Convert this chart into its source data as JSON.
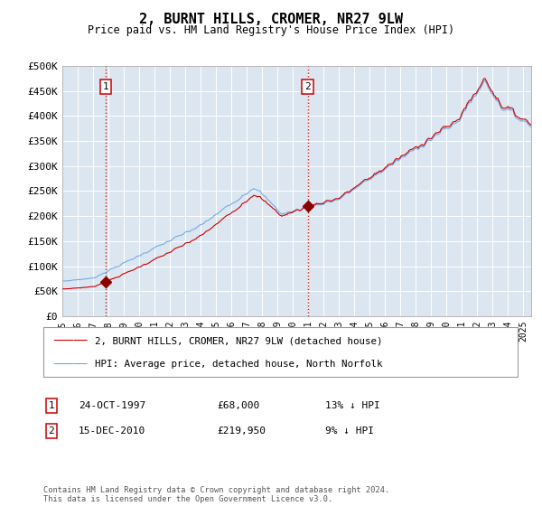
{
  "title": "2, BURNT HILLS, CROMER, NR27 9LW",
  "subtitle": "Price paid vs. HM Land Registry's House Price Index (HPI)",
  "bg_color": "#dce6f1",
  "hpi_color": "#6fa8dc",
  "price_color": "#cc0000",
  "marker_color": "#8b0000",
  "vline_color": "#cc0000",
  "grid_color": "#ffffff",
  "purchase1_date_x": 1997.82,
  "purchase1_price": 68000,
  "purchase2_date_x": 2010.96,
  "purchase2_price": 219950,
  "ylim_min": 0,
  "ylim_max": 500000,
  "xlim_min": 1995.0,
  "xlim_max": 2025.5,
  "yticks": [
    0,
    50000,
    100000,
    150000,
    200000,
    250000,
    300000,
    350000,
    400000,
    450000,
    500000
  ],
  "ytick_labels": [
    "£0",
    "£50K",
    "£100K",
    "£150K",
    "£200K",
    "£250K",
    "£300K",
    "£350K",
    "£400K",
    "£450K",
    "£500K"
  ],
  "xtick_years": [
    1995,
    1996,
    1997,
    1998,
    1999,
    2000,
    2001,
    2002,
    2003,
    2004,
    2005,
    2006,
    2007,
    2008,
    2009,
    2010,
    2011,
    2012,
    2013,
    2014,
    2015,
    2016,
    2017,
    2018,
    2019,
    2020,
    2021,
    2022,
    2023,
    2024,
    2025
  ],
  "legend_price_label": "2, BURNT HILLS, CROMER, NR27 9LW (detached house)",
  "legend_hpi_label": "HPI: Average price, detached house, North Norfolk",
  "annotation1_label": "1",
  "annotation1_date": "24-OCT-1997",
  "annotation1_price": "£68,000",
  "annotation1_pct": "13% ↓ HPI",
  "annotation2_label": "2",
  "annotation2_date": "15-DEC-2010",
  "annotation2_price": "£219,950",
  "annotation2_pct": "9% ↓ HPI",
  "footer": "Contains HM Land Registry data © Crown copyright and database right 2024.\nThis data is licensed under the Open Government Licence v3.0."
}
